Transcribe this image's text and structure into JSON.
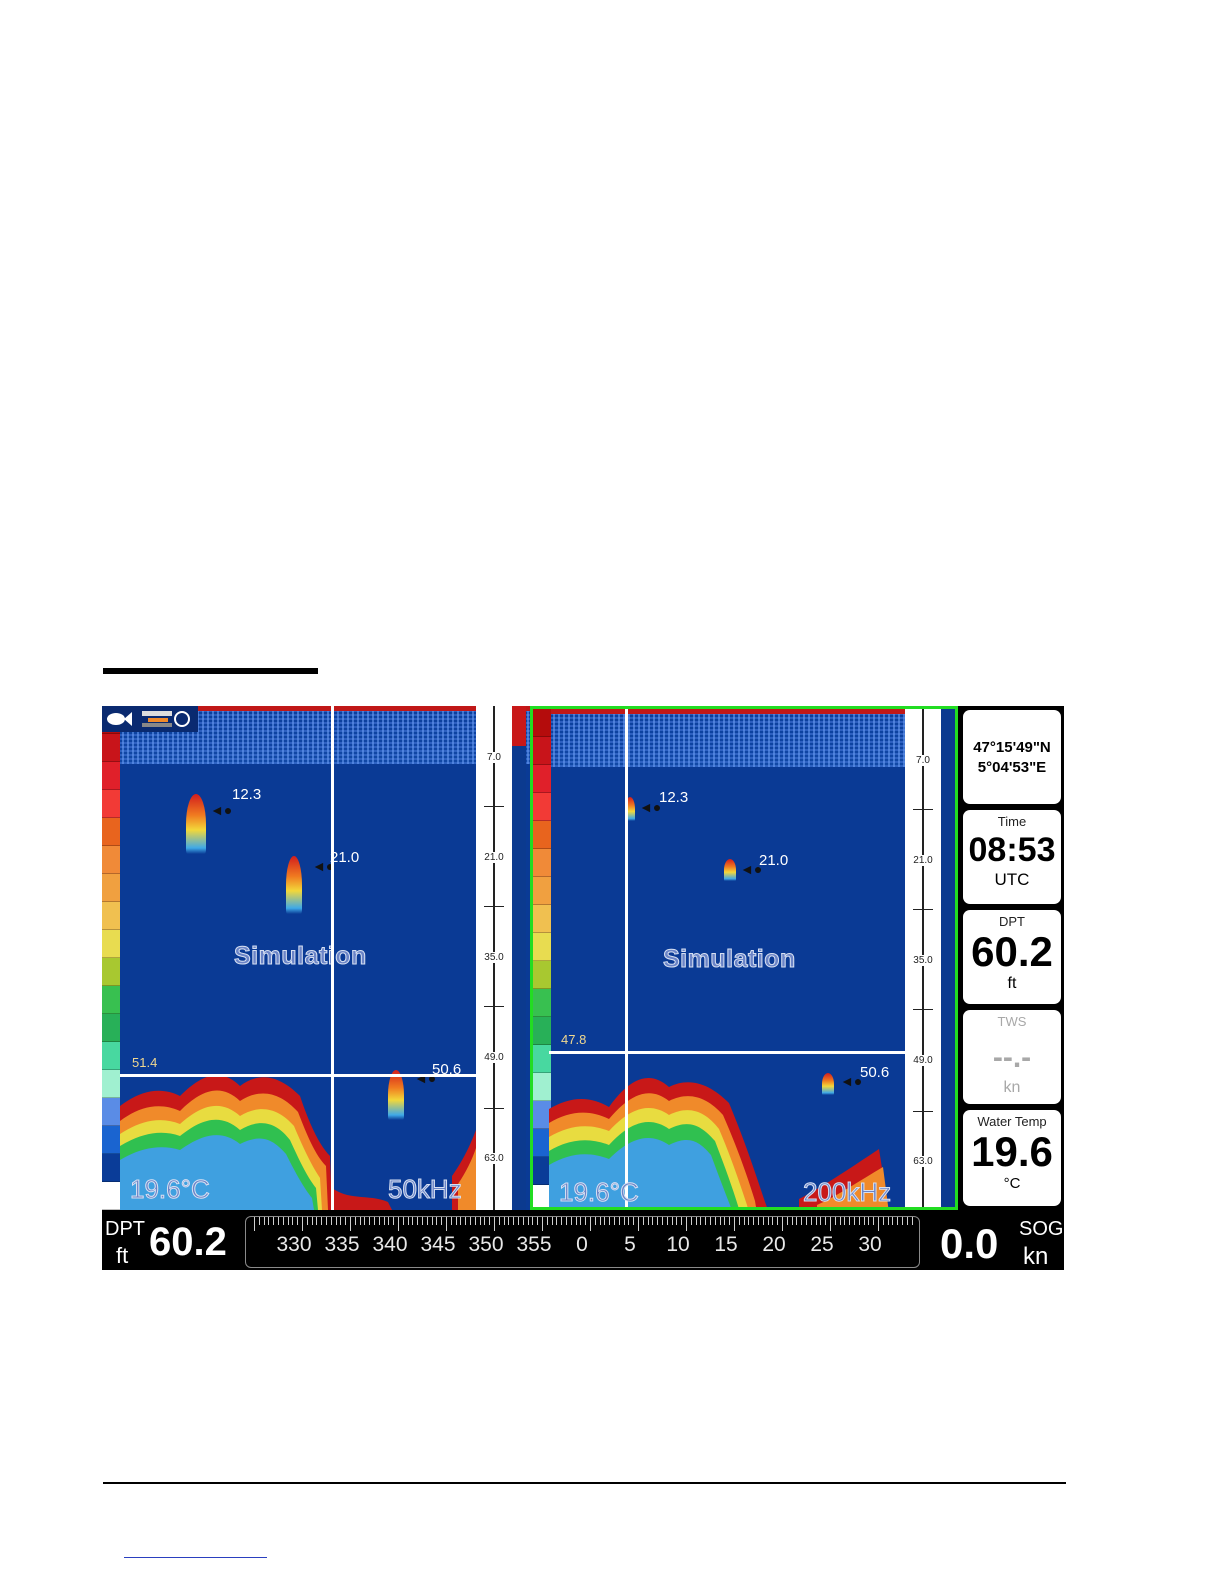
{
  "left_panel": {
    "range_labels": [
      "7.0",
      "21.0",
      "35.0",
      "49.0",
      "63.0"
    ],
    "simulation_label": "Simulation",
    "targets": [
      {
        "depth_label": "12.3"
      },
      {
        "depth_label": "21.0"
      },
      {
        "depth_label": "50.6"
      }
    ],
    "depth_marker": "51.4",
    "water_temp": "19.6°C",
    "frequency": "50kHz"
  },
  "right_panel": {
    "range_labels": [
      "7.0",
      "21.0",
      "35.0",
      "49.0",
      "63.0"
    ],
    "simulation_label": "Simulation",
    "targets": [
      {
        "depth_label": "12.3"
      },
      {
        "depth_label": "21.0"
      },
      {
        "depth_label": "50.6"
      }
    ],
    "depth_marker": "47.8",
    "water_temp": "19.6°C",
    "frequency": "200kHz"
  },
  "colors": {
    "water": "#0a3a95",
    "active_border": "#22dd22",
    "color_scale": [
      "#b40c0c",
      "#c8141a",
      "#e0202a",
      "#f23a36",
      "#e8641e",
      "#f08a38",
      "#f0a040",
      "#f0c050",
      "#e8dc50",
      "#a8c830",
      "#38c050",
      "#28b058",
      "#48d8a0",
      "#a0f0d0",
      "#5a8ce6",
      "#1a64d0",
      "#0a3c98",
      "#ffffff"
    ]
  },
  "info": {
    "position": {
      "lat": "47°15'49\"N",
      "lon": "5°04'53\"E"
    },
    "time": {
      "title": "Time",
      "value": "08:53",
      "unit": "UTC"
    },
    "dpt": {
      "title": "DPT",
      "value": "60.2",
      "unit": "ft"
    },
    "tws": {
      "title": "TWS",
      "value": "--.-",
      "unit": "kn"
    },
    "water_temp": {
      "title": "Water Temp",
      "value": "19.6",
      "unit": "°C"
    }
  },
  "bottom_bar": {
    "dpt_label": "DPT",
    "dpt_unit": "ft",
    "dpt_value": "60.2",
    "compass_labels": [
      "330",
      "335",
      "340",
      "345",
      "350",
      "355",
      "0",
      "5",
      "10",
      "15",
      "20",
      "25",
      "30"
    ],
    "sog_value": "0.0",
    "sog_label": "SOG",
    "sog_unit": "kn"
  },
  "icons": [
    "sonar-fish-icon",
    "transducer-icon",
    "fish-target-icon"
  ]
}
